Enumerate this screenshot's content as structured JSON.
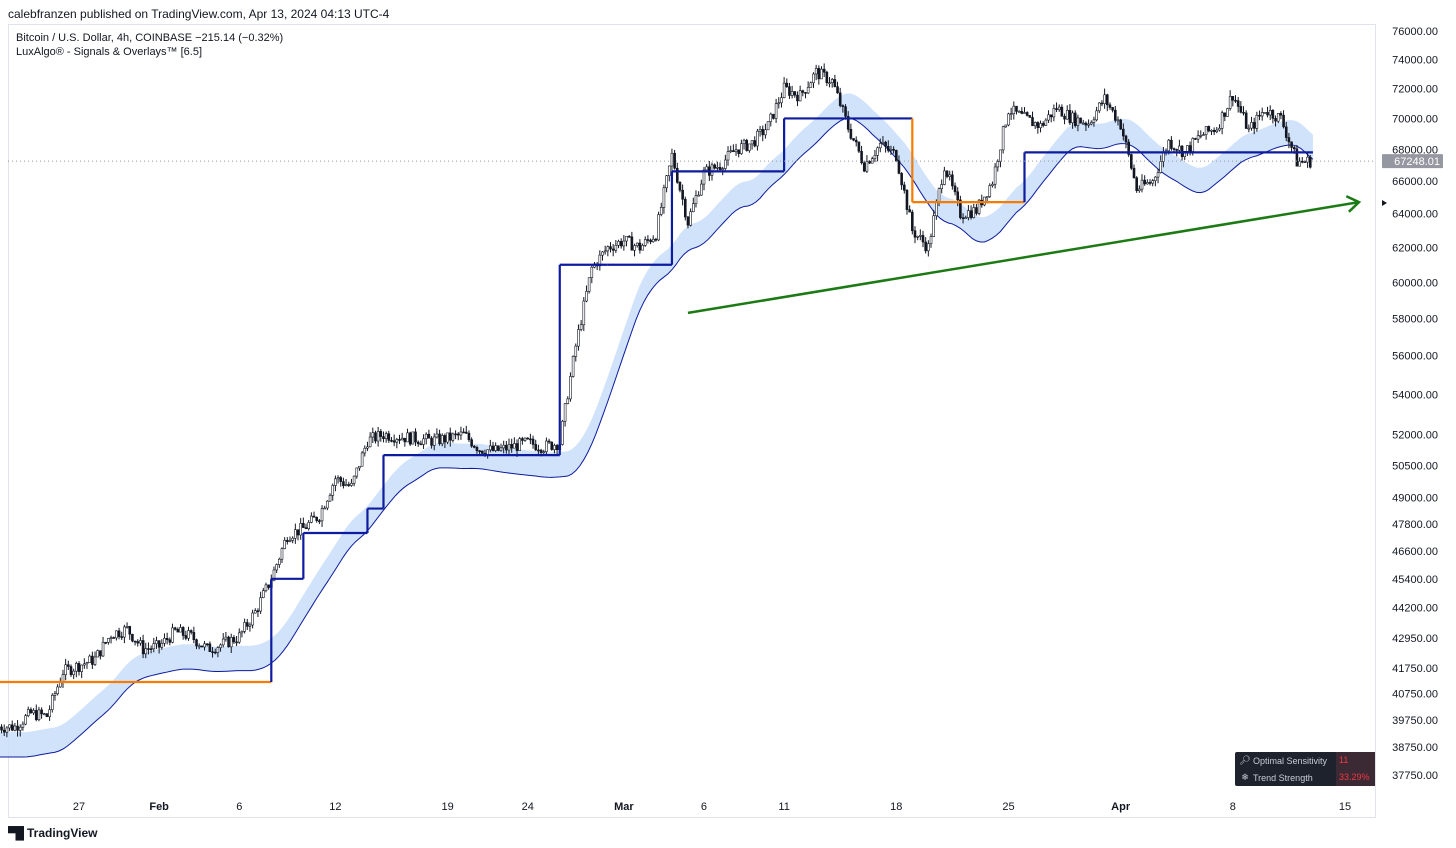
{
  "header": {
    "publisher_line": "calebfranzen published on TradingView.com, Apr 13, 2024 04:13 UTC-4"
  },
  "legend": {
    "symbol_line": "Bitcoin / U.S. Dollar, 4h, COINBASE  −215.14 (−0.32%)",
    "indicator_line": "LuxAlgo® - Signals & Overlays™ [6.5]"
  },
  "info_table": {
    "rows": [
      {
        "icon": "magnifier-icon",
        "label": "Optimal Sensitivity",
        "value": "11"
      },
      {
        "icon": "snowflake-icon",
        "label": "Trend Strength",
        "value": "33.29%"
      }
    ]
  },
  "brand": {
    "name": "TradingView"
  },
  "colors": {
    "candle": "#131722",
    "trend_bull": "#0d1b9e",
    "trend_bear": "#f57c00",
    "band_bull": "#c9defa",
    "band_bear": "#f6c9cd",
    "trendline": "#1b7a13",
    "last_price_bg": "#9598a1"
  },
  "chart_data": {
    "type": "candlestick",
    "symbol": "Bitcoin / U.S. Dollar",
    "interval": "4h",
    "exchange": "COINBASE",
    "scale": "log",
    "last_price_label": "67248.01",
    "y_ticks": [
      "76000.00",
      "74000.00",
      "72000.00",
      "70000.00",
      "68000.00",
      "66000.00",
      "64000.00",
      "62000.00",
      "60000.00",
      "58000.00",
      "56000.00",
      "54000.00",
      "52000.00",
      "50500.00",
      "49000.00",
      "47800.00",
      "46600.00",
      "45400.00",
      "44200.00",
      "42950.00",
      "41750.00",
      "40750.00",
      "39750.00",
      "38750.00",
      "37750.00"
    ],
    "x_ticks": [
      {
        "label": "27",
        "date": "2024-01-27"
      },
      {
        "label": "Feb",
        "date": "2024-02-01"
      },
      {
        "label": "6",
        "date": "2024-02-06"
      },
      {
        "label": "12",
        "date": "2024-02-12"
      },
      {
        "label": "19",
        "date": "2024-02-19"
      },
      {
        "label": "24",
        "date": "2024-02-24"
      },
      {
        "label": "Mar",
        "date": "2024-03-01"
      },
      {
        "label": "6",
        "date": "2024-03-06"
      },
      {
        "label": "11",
        "date": "2024-03-11"
      },
      {
        "label": "18",
        "date": "2024-03-18"
      },
      {
        "label": "25",
        "date": "2024-03-25"
      },
      {
        "label": "Apr",
        "date": "2024-04-01"
      },
      {
        "label": "8",
        "date": "2024-04-08"
      },
      {
        "label": "15",
        "date": "2024-04-15"
      }
    ],
    "price_path": [
      [
        "2024-01-23",
        39500
      ],
      [
        "2024-01-24",
        40000
      ],
      [
        "2024-01-25",
        39900
      ],
      [
        "2024-01-26",
        41600
      ],
      [
        "2024-01-28",
        42100
      ],
      [
        "2024-01-29",
        43100
      ],
      [
        "2024-01-30",
        43300
      ],
      [
        "2024-01-31",
        42500
      ],
      [
        "2024-02-01",
        42600
      ],
      [
        "2024-02-02",
        43200
      ],
      [
        "2024-02-03",
        43000
      ],
      [
        "2024-02-04",
        42500
      ],
      [
        "2024-02-05",
        42700
      ],
      [
        "2024-02-06",
        43000
      ],
      [
        "2024-02-07",
        44000
      ],
      [
        "2024-02-08",
        45400
      ],
      [
        "2024-02-09",
        47300
      ],
      [
        "2024-02-10",
        47600
      ],
      [
        "2024-02-11",
        48200
      ],
      [
        "2024-02-12",
        49900
      ],
      [
        "2024-02-13",
        49500
      ],
      [
        "2024-02-14",
        51700
      ],
      [
        "2024-02-15",
        52000
      ],
      [
        "2024-02-16",
        51900
      ],
      [
        "2024-02-18",
        51700
      ],
      [
        "2024-02-19",
        51800
      ],
      [
        "2024-02-20",
        52000
      ],
      [
        "2024-02-21",
        51300
      ],
      [
        "2024-02-22",
        51200
      ],
      [
        "2024-02-24",
        51600
      ],
      [
        "2024-02-25",
        51400
      ],
      [
        "2024-02-26",
        51600
      ],
      [
        "2024-02-27",
        56500
      ],
      [
        "2024-02-28",
        60800
      ],
      [
        "2024-02-29",
        62000
      ],
      [
        "2024-03-01",
        62400
      ],
      [
        "2024-03-02",
        62000
      ],
      [
        "2024-03-03",
        62800
      ],
      [
        "2024-03-04",
        67600
      ],
      [
        "2024-03-05",
        63500
      ],
      [
        "2024-03-06",
        66500
      ],
      [
        "2024-03-07",
        67000
      ],
      [
        "2024-03-08",
        68000
      ],
      [
        "2024-03-09",
        68400
      ],
      [
        "2024-03-10",
        69500
      ],
      [
        "2024-03-11",
        72000
      ],
      [
        "2024-03-12",
        71500
      ],
      [
        "2024-03-13",
        73100
      ],
      [
        "2024-03-14",
        72500
      ],
      [
        "2024-03-15",
        69400
      ],
      [
        "2024-03-16",
        67000
      ],
      [
        "2024-03-17",
        68300
      ],
      [
        "2024-03-18",
        67600
      ],
      [
        "2024-03-19",
        63000
      ],
      [
        "2024-03-20",
        62000
      ],
      [
        "2024-03-21",
        67000
      ],
      [
        "2024-03-22",
        64000
      ],
      [
        "2024-03-23",
        64200
      ],
      [
        "2024-03-24",
        66000
      ],
      [
        "2024-03-25",
        70600
      ],
      [
        "2024-03-26",
        70000
      ],
      [
        "2024-03-27",
        69500
      ],
      [
        "2024-03-28",
        70700
      ],
      [
        "2024-03-29",
        70000
      ],
      [
        "2024-03-30",
        69700
      ],
      [
        "2024-03-31",
        71300
      ],
      [
        "2024-04-01",
        69600
      ],
      [
        "2024-04-02",
        65500
      ],
      [
        "2024-04-03",
        66000
      ],
      [
        "2024-04-04",
        68500
      ],
      [
        "2024-04-05",
        67800
      ],
      [
        "2024-04-06",
        68900
      ],
      [
        "2024-04-07",
        69400
      ],
      [
        "2024-04-08",
        71600
      ],
      [
        "2024-04-09",
        69200
      ],
      [
        "2024-04-10",
        70600
      ],
      [
        "2024-04-11",
        70000
      ],
      [
        "2024-04-12",
        67200
      ],
      [
        "2024-04-13",
        67248
      ]
    ],
    "trend_stop_line": [
      {
        "from": "2024-01-22",
        "to": "2024-02-08",
        "value": 41200,
        "direction": "bearish"
      },
      {
        "from": "2024-02-08",
        "to": "2024-02-10",
        "value": 45400,
        "direction": "bullish"
      },
      {
        "from": "2024-02-10",
        "to": "2024-02-14",
        "value": 47400,
        "direction": "bullish"
      },
      {
        "from": "2024-02-14",
        "to": "2024-02-15",
        "value": 48500,
        "direction": "bullish"
      },
      {
        "from": "2024-02-15",
        "to": "2024-02-26",
        "value": 51000,
        "direction": "bullish"
      },
      {
        "from": "2024-02-26",
        "to": "2024-02-29",
        "value": 61000,
        "direction": "bullish"
      },
      {
        "from": "2024-02-29",
        "to": "2024-03-04",
        "value": 61000,
        "direction": "bullish"
      },
      {
        "from": "2024-03-04",
        "to": "2024-03-11",
        "value": 66600,
        "direction": "bullish"
      },
      {
        "from": "2024-03-11",
        "to": "2024-03-19",
        "value": 70000,
        "direction": "bullish"
      },
      {
        "from": "2024-03-19",
        "to": "2024-03-26",
        "value": 64700,
        "direction": "bearish"
      },
      {
        "from": "2024-03-26",
        "to": "2024-04-13",
        "value": 67800,
        "direction": "bullish"
      }
    ],
    "annotations": [
      {
        "type": "trendline_arrow",
        "from": [
          "2024-03-05",
          58300
        ],
        "to": [
          "2024-04-15",
          64700
        ],
        "color": "#1b7a13"
      }
    ],
    "grid": false
  }
}
